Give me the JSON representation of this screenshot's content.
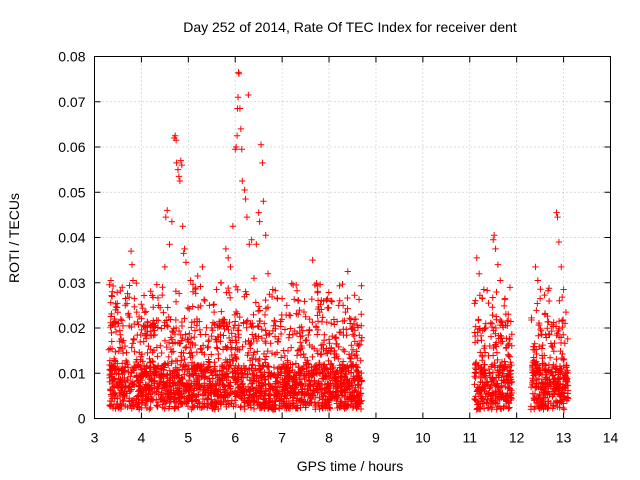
{
  "chart_data": {
    "type": "scatter",
    "title": "Day 252 of 2014, Rate Of TEC Index for receiver dent",
    "xlabel": "GPS time / hours",
    "ylabel": "ROTI / TECUs",
    "xlim": [
      3,
      14
    ],
    "ylim": [
      0,
      0.08
    ],
    "xticks": [
      "3",
      "4",
      "5",
      "6",
      "7",
      "8",
      "9",
      "10",
      "11",
      "12",
      "13",
      "14"
    ],
    "yticks": [
      "0",
      "0.01",
      "0.02",
      "0.03",
      "0.04",
      "0.05",
      "0.06",
      "0.07",
      "0.08"
    ],
    "grid": true,
    "marker": "+",
    "color": "#ff0000",
    "series": [
      {
        "name": "ROTI",
        "segments": [
          {
            "x_start": 3.3,
            "x_end": 8.7,
            "base_min": 0.002,
            "base_max": 0.012,
            "spread_max": 0.03
          },
          {
            "x_start": 11.1,
            "x_end": 11.9,
            "base_min": 0.002,
            "base_max": 0.012,
            "spread_max": 0.03
          },
          {
            "x_start": 12.3,
            "x_end": 13.1,
            "base_min": 0.002,
            "base_max": 0.012,
            "spread_max": 0.03
          }
        ],
        "points": [
          [
            3.35,
            0.0305
          ],
          [
            3.38,
            0.028
          ],
          [
            3.45,
            0.024
          ],
          [
            3.5,
            0.021
          ],
          [
            3.55,
            0.0185
          ],
          [
            3.65,
            0.016
          ],
          [
            3.78,
            0.037
          ],
          [
            3.8,
            0.034
          ],
          [
            3.82,
            0.0305
          ],
          [
            3.85,
            0.0265
          ],
          [
            3.9,
            0.0235
          ],
          [
            4.05,
            0.017
          ],
          [
            4.15,
            0.016
          ],
          [
            4.3,
            0.0205
          ],
          [
            4.4,
            0.0245
          ],
          [
            4.45,
            0.029
          ],
          [
            4.5,
            0.0335
          ],
          [
            4.52,
            0.0445
          ],
          [
            4.55,
            0.046
          ],
          [
            4.6,
            0.0385
          ],
          [
            4.65,
            0.0435
          ],
          [
            4.7,
            0.062
          ],
          [
            4.72,
            0.0625
          ],
          [
            4.74,
            0.0615
          ],
          [
            4.75,
            0.0565
          ],
          [
            4.78,
            0.055
          ],
          [
            4.8,
            0.0535
          ],
          [
            4.82,
            0.0525
          ],
          [
            4.84,
            0.057
          ],
          [
            4.86,
            0.056
          ],
          [
            4.88,
            0.0425
          ],
          [
            4.9,
            0.0365
          ],
          [
            4.92,
            0.0375
          ],
          [
            4.95,
            0.0345
          ],
          [
            5.05,
            0.0305
          ],
          [
            5.1,
            0.028
          ],
          [
            5.2,
            0.0315
          ],
          [
            5.3,
            0.0335
          ],
          [
            5.35,
            0.026
          ],
          [
            5.45,
            0.025
          ],
          [
            5.55,
            0.0235
          ],
          [
            5.6,
            0.0285
          ],
          [
            5.7,
            0.03
          ],
          [
            5.8,
            0.0375
          ],
          [
            5.85,
            0.0355
          ],
          [
            5.9,
            0.0335
          ],
          [
            5.95,
            0.0425
          ],
          [
            6.0,
            0.0595
          ],
          [
            6.02,
            0.06
          ],
          [
            6.04,
            0.0625
          ],
          [
            6.05,
            0.0685
          ],
          [
            6.06,
            0.071
          ],
          [
            6.07,
            0.0765
          ],
          [
            6.08,
            0.0762
          ],
          [
            6.1,
            0.0685
          ],
          [
            6.12,
            0.064
          ],
          [
            6.14,
            0.0595
          ],
          [
            6.15,
            0.0525
          ],
          [
            6.2,
            0.0505
          ],
          [
            6.22,
            0.0485
          ],
          [
            6.25,
            0.0445
          ],
          [
            6.28,
            0.0715
          ],
          [
            6.3,
            0.0385
          ],
          [
            6.35,
            0.0395
          ],
          [
            6.4,
            0.031
          ],
          [
            6.45,
            0.0385
          ],
          [
            6.5,
            0.0455
          ],
          [
            6.52,
            0.0435
          ],
          [
            6.55,
            0.0605
          ],
          [
            6.58,
            0.0565
          ],
          [
            6.6,
            0.048
          ],
          [
            6.65,
            0.0405
          ],
          [
            6.7,
            0.032
          ],
          [
            6.8,
            0.0285
          ],
          [
            6.9,
            0.0265
          ],
          [
            7.0,
            0.0265
          ],
          [
            7.1,
            0.025
          ],
          [
            7.3,
            0.0295
          ],
          [
            7.5,
            0.0225
          ],
          [
            7.65,
            0.035
          ],
          [
            7.7,
            0.0295
          ],
          [
            7.9,
            0.0185
          ],
          [
            8.0,
            0.0175
          ],
          [
            8.15,
            0.0165
          ],
          [
            8.3,
            0.025
          ],
          [
            8.35,
            0.0235
          ],
          [
            8.4,
            0.0325
          ],
          [
            8.45,
            0.021
          ],
          [
            8.55,
            0.0195
          ],
          [
            8.6,
            0.0165
          ],
          [
            11.15,
            0.0355
          ],
          [
            11.2,
            0.032
          ],
          [
            11.3,
            0.0285
          ],
          [
            11.4,
            0.0255
          ],
          [
            11.5,
            0.0395
          ],
          [
            11.52,
            0.0405
          ],
          [
            11.55,
            0.0375
          ],
          [
            11.6,
            0.034
          ],
          [
            11.65,
            0.0305
          ],
          [
            11.75,
            0.0265
          ],
          [
            11.8,
            0.0205
          ],
          [
            12.4,
            0.0335
          ],
          [
            12.45,
            0.0305
          ],
          [
            12.5,
            0.0265
          ],
          [
            12.6,
            0.023
          ],
          [
            12.7,
            0.0185
          ],
          [
            12.85,
            0.0455
          ],
          [
            12.87,
            0.0445
          ],
          [
            12.9,
            0.039
          ],
          [
            12.95,
            0.0335
          ],
          [
            13.0,
            0.0285
          ],
          [
            13.05,
            0.0235
          ]
        ]
      }
    ]
  }
}
